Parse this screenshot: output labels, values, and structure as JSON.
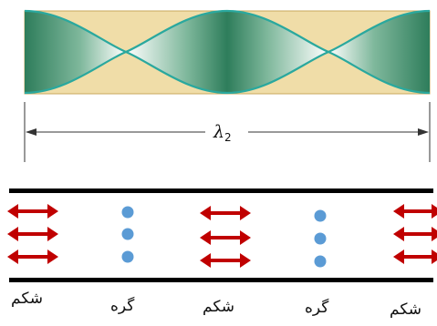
{
  "standing_wave": {
    "wavelength_label": "λ",
    "wavelength_subscript": "2",
    "colors": {
      "tube_fill": "#F0DDA8",
      "tube_edge": "#C9A85C",
      "envelope": "#2AA89E",
      "shade_dark": "#2E7D5B",
      "shade_light": "#FFFFFF"
    }
  },
  "motion_diagram": {
    "labels": [
      "شکم",
      "گره",
      "شکم",
      "گره",
      "شکم"
    ],
    "colors": {
      "arrow": "#C00000",
      "dot": "#5B9BD5",
      "bar": "#000000"
    }
  }
}
